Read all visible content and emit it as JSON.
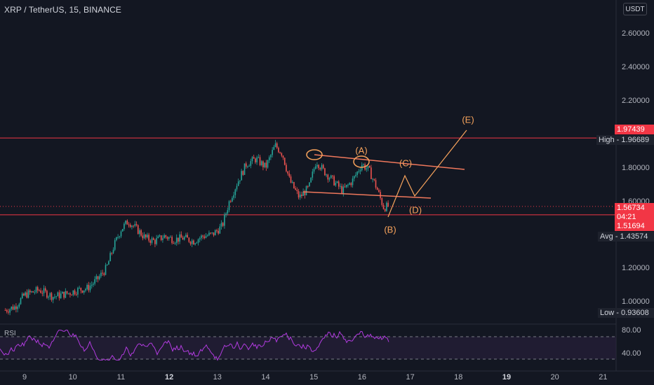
{
  "header": {
    "symbol_title": "XRP / TetherUS, 15, BINANCE",
    "currency": "USDT"
  },
  "price_axis": {
    "ticks": [
      "2.60000",
      "2.40000",
      "2.20000",
      "1.80000",
      "1.60000",
      "1.20000",
      "1.00000"
    ]
  },
  "time_axis": {
    "ticks": [
      {
        "label": "9",
        "bold": false
      },
      {
        "label": "10",
        "bold": false
      },
      {
        "label": "11",
        "bold": false
      },
      {
        "label": "12",
        "bold": true
      },
      {
        "label": "13",
        "bold": false
      },
      {
        "label": "14",
        "bold": false
      },
      {
        "label": "15",
        "bold": false
      },
      {
        "label": "16",
        "bold": false
      },
      {
        "label": "17",
        "bold": false
      },
      {
        "label": "18",
        "bold": false
      },
      {
        "label": "19",
        "bold": true
      },
      {
        "label": "20",
        "bold": false
      },
      {
        "label": "21",
        "bold": false
      }
    ]
  },
  "price_tags": {
    "resistance": "1.97439",
    "high_label": "High",
    "high_value": "1.96689",
    "last_price": "1.56734",
    "countdown": "04:21",
    "support": "1.51694",
    "avg_label": "Avg",
    "avg_value": "1.43574",
    "low_label": "Low",
    "low_value": "0.93608"
  },
  "annotations": {
    "wave_a": "(A)",
    "wave_b": "(B)",
    "wave_c": "(C)",
    "wave_d": "(D)",
    "wave_e": "(E)"
  },
  "rsi": {
    "label": "RSI",
    "ticks": [
      "80.00",
      "40.00"
    ]
  },
  "colors": {
    "background": "#131722",
    "up": "#26a69a",
    "down": "#ef5350",
    "annotation": "#f7a35c",
    "level_line": "#f23645",
    "rsi_line": "#b23be0",
    "rsi_band": "#2a1f3d"
  },
  "chart_data": {
    "type": "candlestick",
    "price_range": [
      0.9,
      2.7
    ],
    "resistance_level": 1.97439,
    "support_level": 1.51694,
    "session_high": 1.96689,
    "session_low": 0.93608,
    "average": 1.43574,
    "last_price": 1.56734,
    "close_path": [
      {
        "day": 8.6,
        "price": 0.95
      },
      {
        "day": 8.8,
        "price": 0.97
      },
      {
        "day": 9.0,
        "price": 1.04
      },
      {
        "day": 9.3,
        "price": 1.07
      },
      {
        "day": 9.6,
        "price": 1.03
      },
      {
        "day": 9.9,
        "price": 1.05
      },
      {
        "day": 10.1,
        "price": 1.07
      },
      {
        "day": 10.3,
        "price": 1.08
      },
      {
        "day": 10.5,
        "price": 1.13
      },
      {
        "day": 10.7,
        "price": 1.2
      },
      {
        "day": 10.85,
        "price": 1.33
      },
      {
        "day": 11.0,
        "price": 1.43
      },
      {
        "day": 11.15,
        "price": 1.48
      },
      {
        "day": 11.3,
        "price": 1.44
      },
      {
        "day": 11.5,
        "price": 1.38
      },
      {
        "day": 11.7,
        "price": 1.36
      },
      {
        "day": 11.9,
        "price": 1.39
      },
      {
        "day": 12.1,
        "price": 1.37
      },
      {
        "day": 12.3,
        "price": 1.38
      },
      {
        "day": 12.5,
        "price": 1.36
      },
      {
        "day": 12.7,
        "price": 1.39
      },
      {
        "day": 12.9,
        "price": 1.4
      },
      {
        "day": 13.1,
        "price": 1.45
      },
      {
        "day": 13.25,
        "price": 1.6
      },
      {
        "day": 13.4,
        "price": 1.7
      },
      {
        "day": 13.6,
        "price": 1.82
      },
      {
        "day": 13.8,
        "price": 1.85
      },
      {
        "day": 14.0,
        "price": 1.8
      },
      {
        "day": 14.2,
        "price": 1.93
      },
      {
        "day": 14.35,
        "price": 1.88
      },
      {
        "day": 14.5,
        "price": 1.72
      },
      {
        "day": 14.7,
        "price": 1.62
      },
      {
        "day": 14.9,
        "price": 1.68
      },
      {
        "day": 15.05,
        "price": 1.84
      },
      {
        "day": 15.2,
        "price": 1.78
      },
      {
        "day": 15.4,
        "price": 1.72
      },
      {
        "day": 15.6,
        "price": 1.66
      },
      {
        "day": 15.8,
        "price": 1.72
      },
      {
        "day": 16.0,
        "price": 1.82
      },
      {
        "day": 16.15,
        "price": 1.78
      },
      {
        "day": 16.3,
        "price": 1.68
      },
      {
        "day": 16.45,
        "price": 1.56
      },
      {
        "day": 16.55,
        "price": 1.57
      }
    ],
    "rsi_series": {
      "name": "RSI",
      "range": [
        20,
        90
      ],
      "upper_band": 70,
      "lower_band": 30
    }
  }
}
